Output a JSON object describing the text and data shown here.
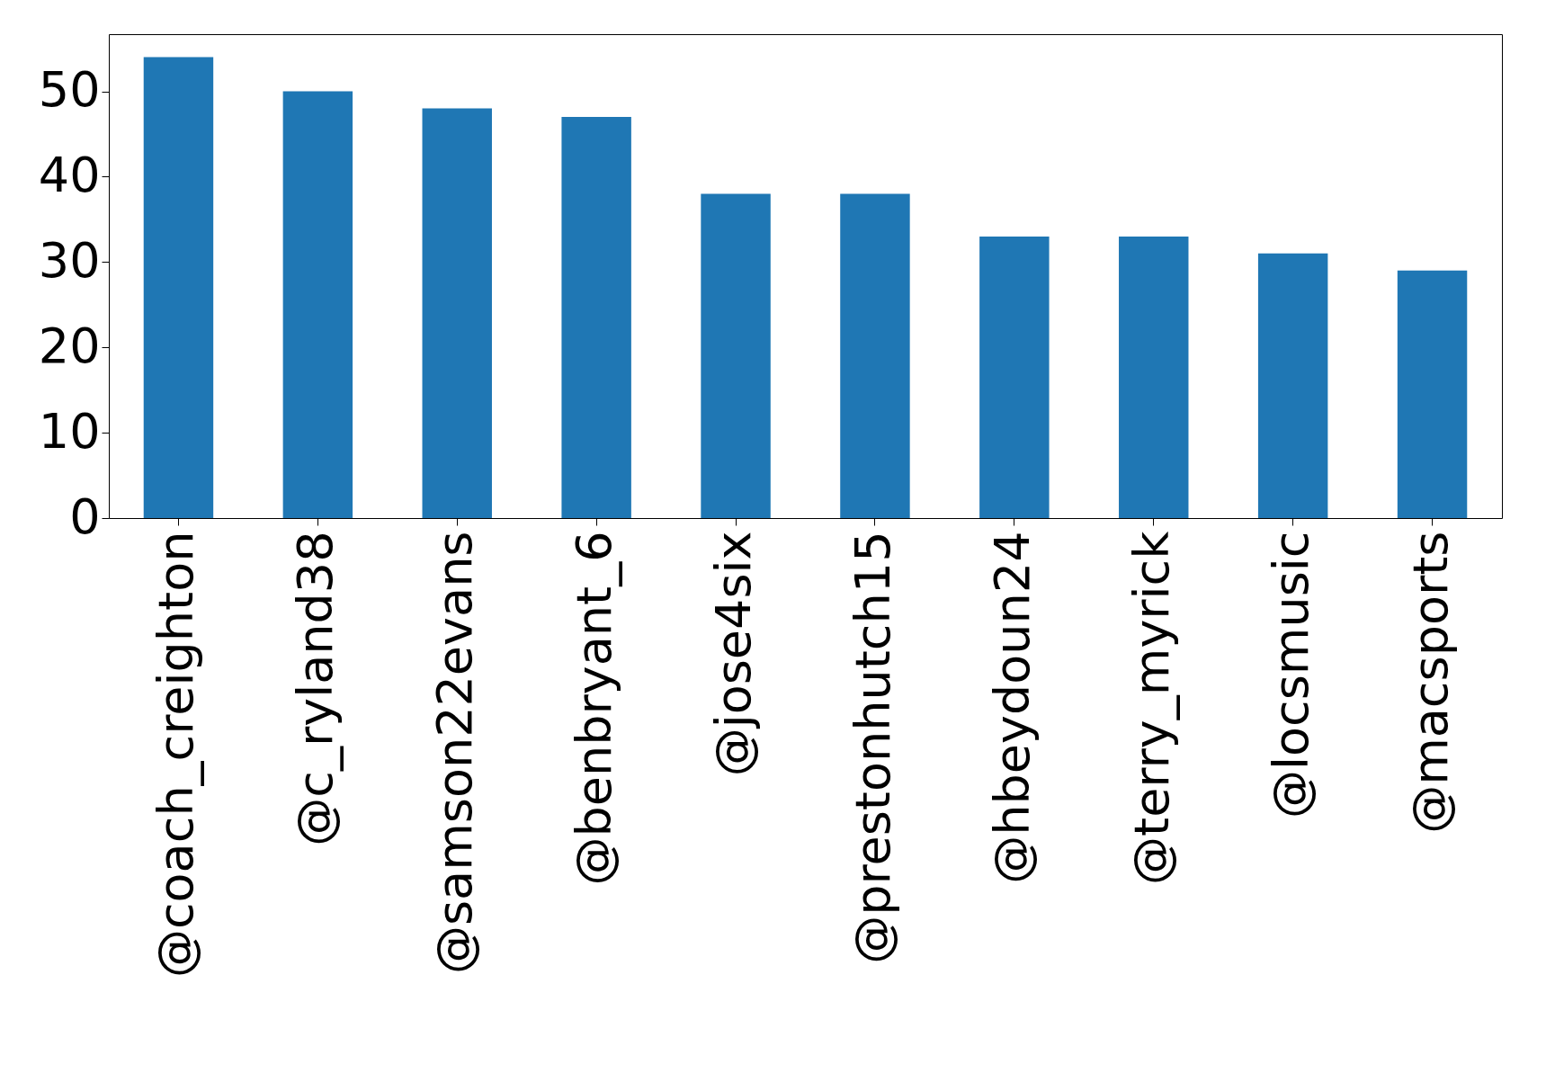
{
  "chart_data": {
    "type": "bar",
    "categories": [
      "@coach_creighton",
      "@c_ryland38",
      "@samson22evans",
      "@benbryant_6",
      "@jose4six",
      "@prestonhutch15",
      "@hbeydoun24",
      "@terry_myrick",
      "@locsmusic",
      "@macsports"
    ],
    "values": [
      54,
      50,
      48,
      47,
      38,
      38,
      33,
      33,
      31,
      29
    ],
    "color": "#1f77b4",
    "ylim": [
      0,
      56.7
    ],
    "yticks": [
      0,
      10,
      20,
      30,
      40,
      50
    ],
    "grid": false
  }
}
